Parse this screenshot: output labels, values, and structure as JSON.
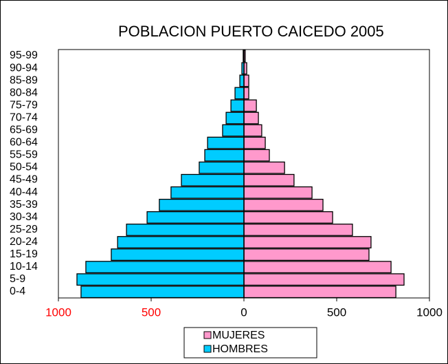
{
  "chart_data": {
    "type": "pyramid",
    "title": "POBLACION PUERTO CAICEDO 2005",
    "categories": [
      "0-4",
      "5-9",
      "10-14",
      "15-19",
      "20-24",
      "25-29",
      "30-34",
      "35-39",
      "40-44",
      "45-49",
      "50-54",
      "55-59",
      "60-64",
      "65-69",
      "70-74",
      "75-79",
      "80-84",
      "85-89",
      "90-94",
      "95-99"
    ],
    "series": [
      {
        "name": "MUJERES",
        "color": "#ff99cc",
        "values": [
          819,
          863,
          793,
          674,
          685,
          585,
          478,
          426,
          367,
          270,
          219,
          137,
          115,
          96,
          78,
          67,
          26,
          26,
          15,
          7
        ]
      },
      {
        "name": "HOMBRES",
        "color": "#00ccff",
        "values": [
          -878,
          -900,
          -852,
          -715,
          -681,
          -633,
          -522,
          -456,
          -393,
          -337,
          -241,
          -211,
          -196,
          -115,
          -96,
          -70,
          -48,
          -22,
          -11,
          -4
        ]
      }
    ],
    "xlim": [
      -1000,
      1000
    ],
    "xticks": [
      {
        "value": -1000,
        "label": "1000"
      },
      {
        "value": -500,
        "label": "500"
      },
      0,
      500,
      1000
    ]
  }
}
